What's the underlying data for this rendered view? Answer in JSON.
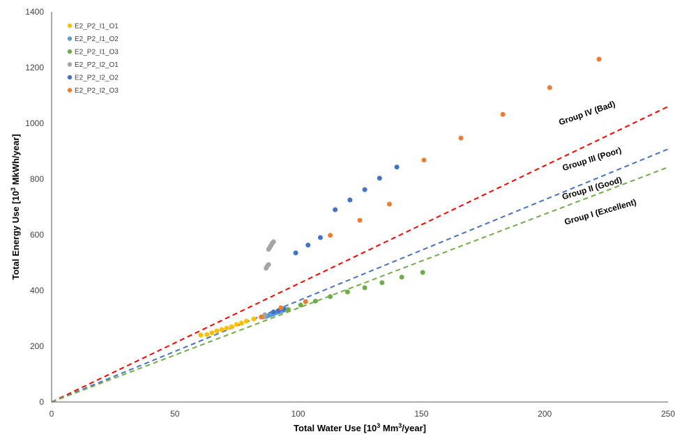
{
  "chart_data": {
    "type": "scatter",
    "title": "",
    "xlabel": {
      "prefix": "Total Water Use [10",
      "sup": "3",
      "middle": " Mm",
      "sup2": "3",
      "suffix": "/year]"
    },
    "ylabel": {
      "prefix": "Total Energy Use [10",
      "sup": "3",
      "suffix": " MkWh/year]"
    },
    "xlim": [
      0,
      250
    ],
    "ylim": [
      0,
      1400
    ],
    "x_ticks": [
      0,
      50,
      100,
      150,
      200,
      250
    ],
    "y_ticks": [
      0,
      200,
      400,
      600,
      800,
      1000,
      1200,
      1400
    ],
    "x_tick_labels": [
      "0",
      "50",
      "100",
      "150",
      "200",
      "250"
    ],
    "y_tick_labels": [
      "0",
      "200",
      "400",
      "600",
      "800",
      "1000",
      "1200",
      "1400"
    ],
    "grid": false,
    "legend_position": "top-left",
    "series": [
      {
        "name": "E2_P2_I1_O1",
        "color": "#FFC000",
        "points": [
          [
            60.5,
            240
          ],
          [
            63,
            242
          ],
          [
            65,
            248
          ],
          [
            67,
            255
          ],
          [
            69,
            260
          ],
          [
            71,
            265
          ],
          [
            73,
            270
          ],
          [
            75,
            278
          ],
          [
            77,
            283
          ],
          [
            79,
            290
          ],
          [
            82,
            298
          ],
          [
            86,
            305
          ]
        ]
      },
      {
        "name": "E2_P2_I1_O2",
        "color": "#5B9BD5",
        "points": [
          [
            86,
            305
          ],
          [
            87,
            307
          ],
          [
            88,
            310
          ],
          [
            89,
            313
          ],
          [
            90,
            316
          ],
          [
            91,
            320
          ],
          [
            92,
            323
          ],
          [
            93,
            326
          ],
          [
            94,
            329
          ],
          [
            95,
            332
          ]
        ]
      },
      {
        "name": "E2_P2_I1_O3",
        "color": "#70AD47",
        "points": [
          [
            96,
            332
          ],
          [
            101,
            348
          ],
          [
            107,
            362
          ],
          [
            113,
            378
          ],
          [
            120,
            395
          ],
          [
            127,
            410
          ],
          [
            134,
            428
          ],
          [
            142,
            448
          ],
          [
            150.5,
            465
          ]
        ]
      },
      {
        "name": "E2_P2_I2_O1",
        "color": "#A5A5A5",
        "points": [
          [
            86,
            305
          ],
          [
            86.5,
            313
          ],
          [
            87,
            480
          ],
          [
            87.5,
            488
          ],
          [
            88,
            493
          ],
          [
            88,
            548
          ],
          [
            88.5,
            555
          ],
          [
            89,
            562
          ],
          [
            89.5,
            570
          ],
          [
            90,
            575
          ]
        ]
      },
      {
        "name": "E2_P2_I2_O2",
        "color": "#4472C4",
        "points": [
          [
            90,
            323
          ],
          [
            92,
            327
          ],
          [
            94,
            333
          ],
          [
            99,
            535
          ],
          [
            104,
            563
          ],
          [
            109,
            590
          ],
          [
            115,
            690
          ],
          [
            121,
            725
          ],
          [
            127,
            762
          ],
          [
            133,
            803
          ],
          [
            140,
            843
          ]
        ]
      },
      {
        "name": "E2_P2_I2_O3",
        "color": "#ED7D31",
        "points": [
          [
            85,
            305
          ],
          [
            93,
            338
          ],
          [
            103,
            360
          ],
          [
            113,
            598
          ],
          [
            125,
            652
          ],
          [
            137,
            710
          ],
          [
            151,
            868
          ],
          [
            166,
            947
          ],
          [
            183,
            1032
          ],
          [
            202,
            1128
          ],
          [
            222,
            1230
          ]
        ]
      }
    ],
    "reference_lines": [
      {
        "label": "Group  IV  (Bad)",
        "color": "#FF0000",
        "slope": 4.24
      },
      {
        "label": "Group  III  (Poor)",
        "color": "#4472C4",
        "slope": 3.63
      },
      {
        "label": "Group  II  (Good)",
        "color": "#70AD47",
        "slope": 3.37
      },
      {
        "label": "Group  I  (Excellent)",
        "color": "#70AD47",
        "slope": 3.37
      }
    ],
    "group_labels": [
      {
        "text": "Group  IV  (Bad)"
      },
      {
        "text": "Group  III  (Poor)"
      },
      {
        "text": "Group  II  (Good)"
      },
      {
        "text": "Group  I  (Excellent)"
      }
    ]
  }
}
